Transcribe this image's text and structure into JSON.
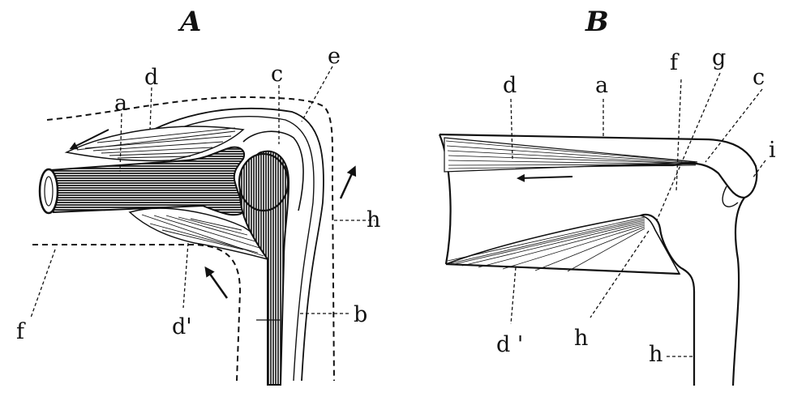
{
  "figure": {
    "panel_a": {
      "title": "A",
      "labels": {
        "a": "a",
        "b": "b",
        "c": "c",
        "d": "d",
        "d_prime": "d'",
        "e": "e",
        "f": "f",
        "h": "h"
      }
    },
    "panel_b": {
      "title": "B",
      "labels": {
        "a": "a",
        "c": "c",
        "d": "d",
        "d_prime": "d '",
        "f": "f",
        "g": "g",
        "h1": "h",
        "h2": "h",
        "i": "i"
      }
    }
  },
  "colors": {
    "ink": "#111111",
    "paper": "#ffffff"
  }
}
